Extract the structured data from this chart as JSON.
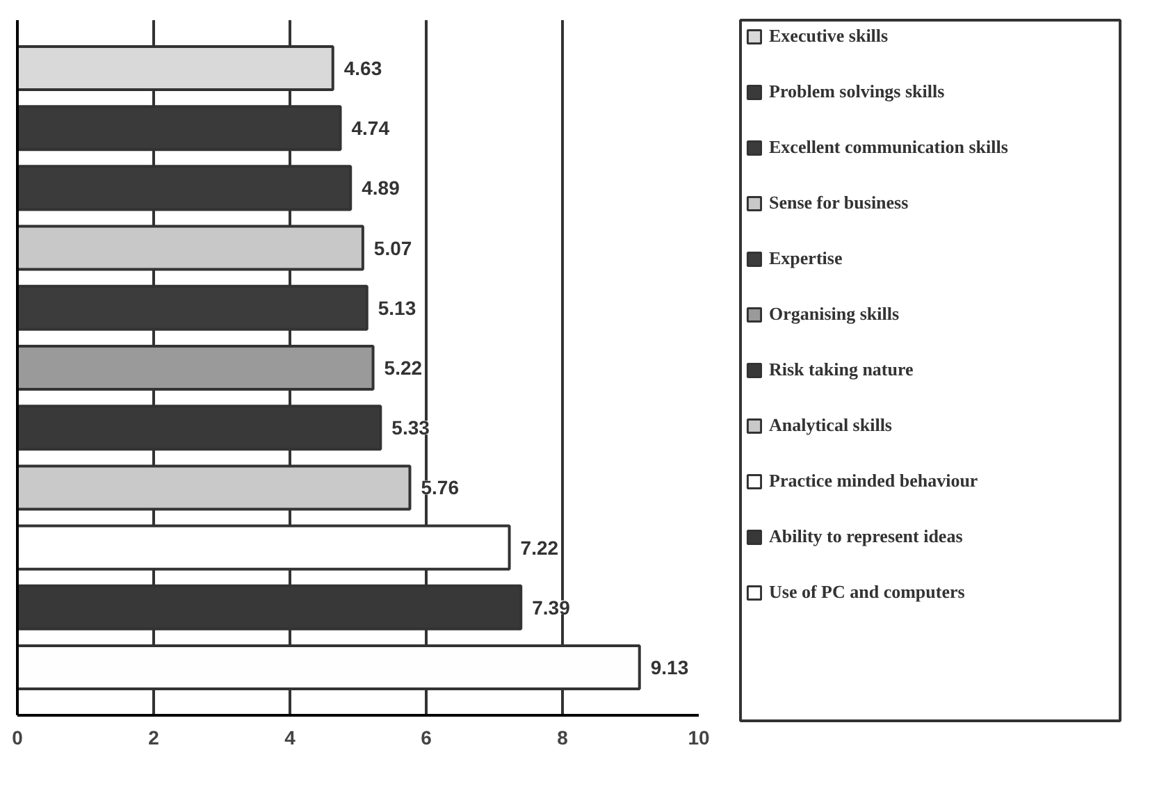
{
  "chart_data": {
    "type": "bar",
    "orientation": "horizontal",
    "categories": [
      null
    ],
    "series": [
      {
        "name": "Executive skills",
        "color": "#d9d9d9",
        "values": [
          4.63
        ]
      },
      {
        "name": "Problem solvings skills",
        "color": "#3a3a3a",
        "values": [
          4.74
        ]
      },
      {
        "name": "Excellent communication skills",
        "color": "#3b3b3b",
        "values": [
          4.89
        ]
      },
      {
        "name": "Sense for business",
        "color": "#c8c8c8",
        "values": [
          5.07
        ]
      },
      {
        "name": "Expertise",
        "color": "#3c3c3c",
        "values": [
          5.13
        ]
      },
      {
        "name": "Organising skills",
        "color": "#9a9a9a",
        "values": [
          5.22
        ]
      },
      {
        "name": "Risk taking nature",
        "color": "#393939",
        "values": [
          5.33
        ]
      },
      {
        "name": "Analytical skills",
        "color": "#c9c9c9",
        "values": [
          5.76
        ]
      },
      {
        "name": "Practice minded behaviour",
        "color": "#ffffff",
        "values": [
          7.22
        ]
      },
      {
        "name": "Ability to represent ideas",
        "color": "#383838",
        "values": [
          7.39
        ]
      },
      {
        "name": "Use of PC and computers",
        "color": "#fefefe",
        "values": [
          9.13
        ]
      }
    ],
    "xlim": [
      0,
      10
    ],
    "xticks": [
      0,
      2,
      4,
      6,
      8,
      10
    ],
    "grid": "x",
    "legend": "right",
    "data_labels": true,
    "tick_labels": "x"
  }
}
